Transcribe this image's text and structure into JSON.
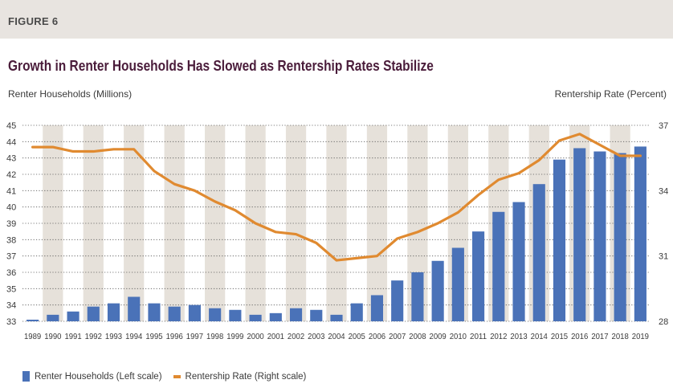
{
  "figure_label": "FIGURE 6",
  "chart_data": {
    "type": "bar+line",
    "title": "Growth in Renter Households Has Slowed as Rentership Rates Stabilize",
    "left_axis_title": "Renter Households (Millions)",
    "right_axis_title": "Rentership Rate (Percent)",
    "categories": [
      "1989",
      "1990",
      "1991",
      "1992",
      "1993",
      "1994",
      "1995",
      "1996",
      "1997",
      "1998",
      "1999",
      "2000",
      "2001",
      "2002",
      "2003",
      "2004",
      "2005",
      "2006",
      "2007",
      "2008",
      "2009",
      "2010",
      "2011",
      "2012",
      "2013",
      "2014",
      "2015",
      "2016",
      "2017",
      "2018",
      "2019"
    ],
    "y_left": {
      "min": 33,
      "max": 45,
      "ticks": [
        "45",
        "44",
        "43",
        "42",
        "41",
        "40",
        "39",
        "38",
        "37",
        "36",
        "35",
        "34",
        "33"
      ]
    },
    "y_right": {
      "min": 28,
      "max": 37,
      "ticks": [
        "37",
        "34",
        "31",
        "28"
      ]
    },
    "series": [
      {
        "name": "Renter Households (Left scale)",
        "type": "bar",
        "axis": "left",
        "color": "#4a72b8",
        "values": [
          33.1,
          33.4,
          33.6,
          33.9,
          34.1,
          34.5,
          34.1,
          33.9,
          34.0,
          33.8,
          33.7,
          33.4,
          33.5,
          33.8,
          33.7,
          33.4,
          34.1,
          34.6,
          35.5,
          36.0,
          36.7,
          37.5,
          38.5,
          39.7,
          40.3,
          41.4,
          42.9,
          43.6,
          43.4,
          43.3,
          43.7
        ]
      },
      {
        "name": "Rentership Rate (Right scale)",
        "type": "line",
        "axis": "right",
        "color": "#e08a30",
        "values": [
          36.0,
          36.0,
          35.8,
          35.8,
          35.9,
          35.9,
          34.9,
          34.3,
          34.0,
          33.5,
          33.1,
          32.5,
          32.1,
          32.0,
          31.6,
          30.8,
          30.9,
          31.0,
          31.8,
          32.1,
          32.5,
          33.0,
          33.8,
          34.5,
          34.8,
          35.4,
          36.3,
          36.6,
          36.1,
          35.6,
          35.6
        ]
      }
    ],
    "legend_position": "bottom-left",
    "background_bands": "alternating vertical beige bands",
    "grid": "dotted horizontal"
  },
  "colors": {
    "header_bg": "#e8e4e0",
    "title": "#4a1c3a",
    "band": "#e6e1da",
    "bar": "#4a72b8",
    "line": "#e08a30"
  }
}
